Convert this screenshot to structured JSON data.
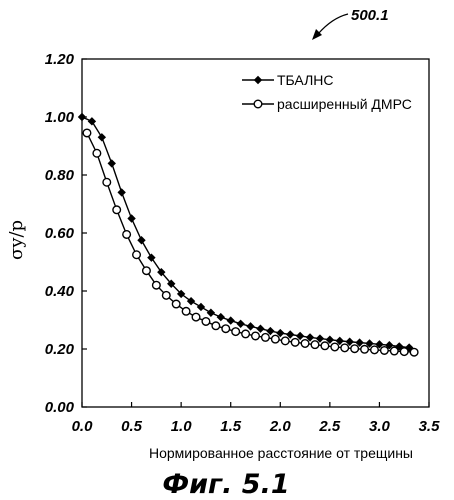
{
  "ref_number": "500.1",
  "figure_caption": "Фиг. 5.1",
  "chart_data": {
    "type": "line",
    "title": "",
    "xlabel": "Нормированное расстояние от трещины",
    "ylabel": "σy/p",
    "xlim": [
      0.0,
      3.5
    ],
    "ylim": [
      0.0,
      1.2
    ],
    "x_ticks": [
      "0.0",
      "0.5",
      "1.0",
      "1.5",
      "2.0",
      "2.5",
      "3.0",
      "3.5"
    ],
    "y_ticks": [
      "0.00",
      "0.20",
      "0.40",
      "0.60",
      "0.80",
      "1.00",
      "1.20"
    ],
    "grid": false,
    "legend_position": "top-right",
    "series": [
      {
        "name": "ТБАЛНС",
        "marker": "filled-diamond",
        "x": [
          0.0,
          0.1,
          0.2,
          0.3,
          0.4,
          0.5,
          0.6,
          0.7,
          0.8,
          0.9,
          1.0,
          1.1,
          1.2,
          1.3,
          1.4,
          1.5,
          1.6,
          1.7,
          1.8,
          1.9,
          2.0,
          2.1,
          2.2,
          2.3,
          2.4,
          2.5,
          2.6,
          2.7,
          2.8,
          2.9,
          3.0,
          3.1,
          3.2,
          3.3
        ],
        "y": [
          1.0,
          0.985,
          0.93,
          0.84,
          0.74,
          0.65,
          0.575,
          0.515,
          0.465,
          0.425,
          0.39,
          0.365,
          0.345,
          0.325,
          0.31,
          0.298,
          0.287,
          0.278,
          0.27,
          0.262,
          0.255,
          0.25,
          0.245,
          0.24,
          0.236,
          0.232,
          0.228,
          0.225,
          0.222,
          0.219,
          0.216,
          0.213,
          0.209,
          0.205
        ]
      },
      {
        "name": "расширенный ДМРС",
        "marker": "open-circle",
        "x": [
          0.05,
          0.15,
          0.25,
          0.35,
          0.45,
          0.55,
          0.65,
          0.75,
          0.85,
          0.95,
          1.05,
          1.15,
          1.25,
          1.35,
          1.45,
          1.55,
          1.65,
          1.75,
          1.85,
          1.95,
          2.05,
          2.15,
          2.25,
          2.35,
          2.45,
          2.55,
          2.65,
          2.75,
          2.85,
          2.95,
          3.05,
          3.15,
          3.25,
          3.35
        ],
        "y": [
          0.945,
          0.875,
          0.775,
          0.68,
          0.595,
          0.525,
          0.47,
          0.42,
          0.385,
          0.355,
          0.33,
          0.31,
          0.295,
          0.28,
          0.27,
          0.26,
          0.252,
          0.245,
          0.24,
          0.234,
          0.228,
          0.223,
          0.219,
          0.215,
          0.211,
          0.207,
          0.204,
          0.201,
          0.199,
          0.197,
          0.195,
          0.193,
          0.191,
          0.189
        ]
      }
    ]
  }
}
